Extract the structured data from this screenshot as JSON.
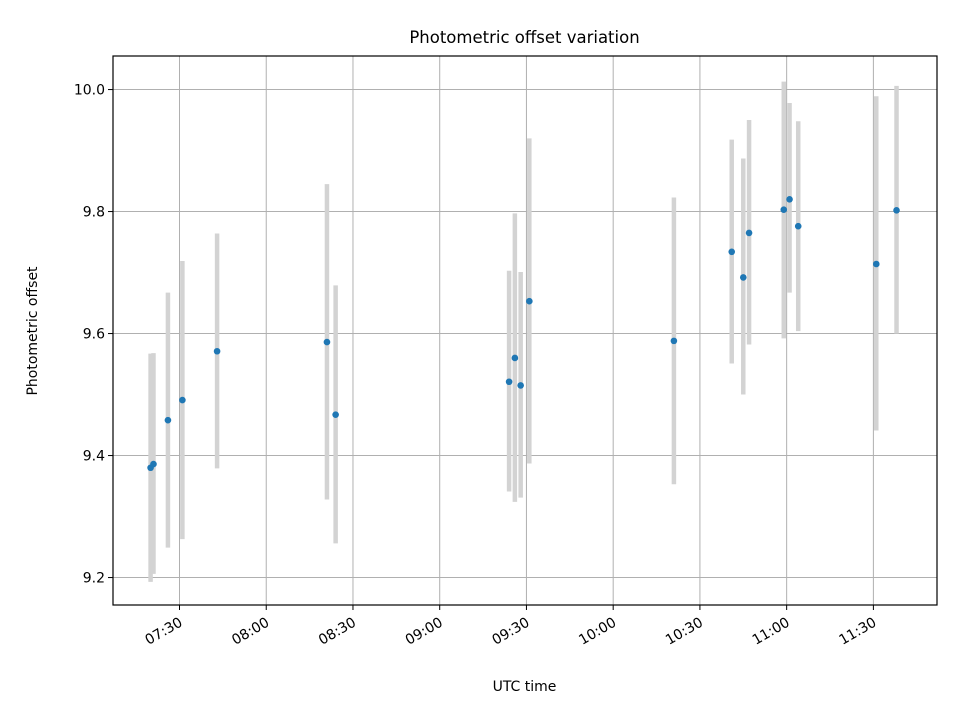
{
  "chart_data": {
    "type": "scatter",
    "title": "Photometric offset variation",
    "xlabel": "UTC time",
    "ylabel": "Photometric offset",
    "x_format": "HH:MM",
    "xlim": [
      "07:07",
      "11:52"
    ],
    "ylim": [
      9.155,
      10.055
    ],
    "x_ticks": [
      "07:30",
      "08:00",
      "08:30",
      "09:00",
      "09:30",
      "10:00",
      "10:30",
      "11:00",
      "11:30"
    ],
    "y_ticks": [
      "9.2",
      "9.4",
      "9.6",
      "9.8",
      "10.0"
    ],
    "grid": true,
    "marker_color": "#1f77b4",
    "errorbar_color": "#d3d3d3",
    "series": [
      {
        "points": [
          {
            "x": "07:20",
            "y": 9.38,
            "ylow": 9.193,
            "yhigh": 9.567
          },
          {
            "x": "07:21",
            "y": 9.386,
            "ylow": 9.206,
            "yhigh": 9.568
          },
          {
            "x": "07:26",
            "y": 9.458,
            "ylow": 9.249,
            "yhigh": 9.667
          },
          {
            "x": "07:31",
            "y": 9.491,
            "ylow": 9.263,
            "yhigh": 9.719
          },
          {
            "x": "07:43",
            "y": 9.571,
            "ylow": 9.379,
            "yhigh": 9.764
          },
          {
            "x": "08:21",
            "y": 9.586,
            "ylow": 9.328,
            "yhigh": 9.845
          },
          {
            "x": "08:24",
            "y": 9.467,
            "ylow": 9.256,
            "yhigh": 9.679
          },
          {
            "x": "09:24",
            "y": 9.521,
            "ylow": 9.341,
            "yhigh": 9.703
          },
          {
            "x": "09:26",
            "y": 9.56,
            "ylow": 9.324,
            "yhigh": 9.797
          },
          {
            "x": "09:28",
            "y": 9.515,
            "ylow": 9.331,
            "yhigh": 9.701
          },
          {
            "x": "09:31",
            "y": 9.653,
            "ylow": 9.387,
            "yhigh": 9.92
          },
          {
            "x": "10:21",
            "y": 9.588,
            "ylow": 9.353,
            "yhigh": 9.823
          },
          {
            "x": "10:41",
            "y": 9.734,
            "ylow": 9.551,
            "yhigh": 9.918
          },
          {
            "x": "10:45",
            "y": 9.692,
            "ylow": 9.5,
            "yhigh": 9.887
          },
          {
            "x": "10:47",
            "y": 9.765,
            "ylow": 9.582,
            "yhigh": 9.95
          },
          {
            "x": "10:59",
            "y": 9.803,
            "ylow": 9.592,
            "yhigh": 10.013
          },
          {
            "x": "11:01",
            "y": 9.82,
            "ylow": 9.667,
            "yhigh": 9.978
          },
          {
            "x": "11:04",
            "y": 9.776,
            "ylow": 9.604,
            "yhigh": 9.948
          },
          {
            "x": "11:31",
            "y": 9.714,
            "ylow": 9.441,
            "yhigh": 9.989
          },
          {
            "x": "11:38",
            "y": 9.802,
            "ylow": 9.6,
            "yhigh": 10.006
          }
        ]
      }
    ]
  }
}
